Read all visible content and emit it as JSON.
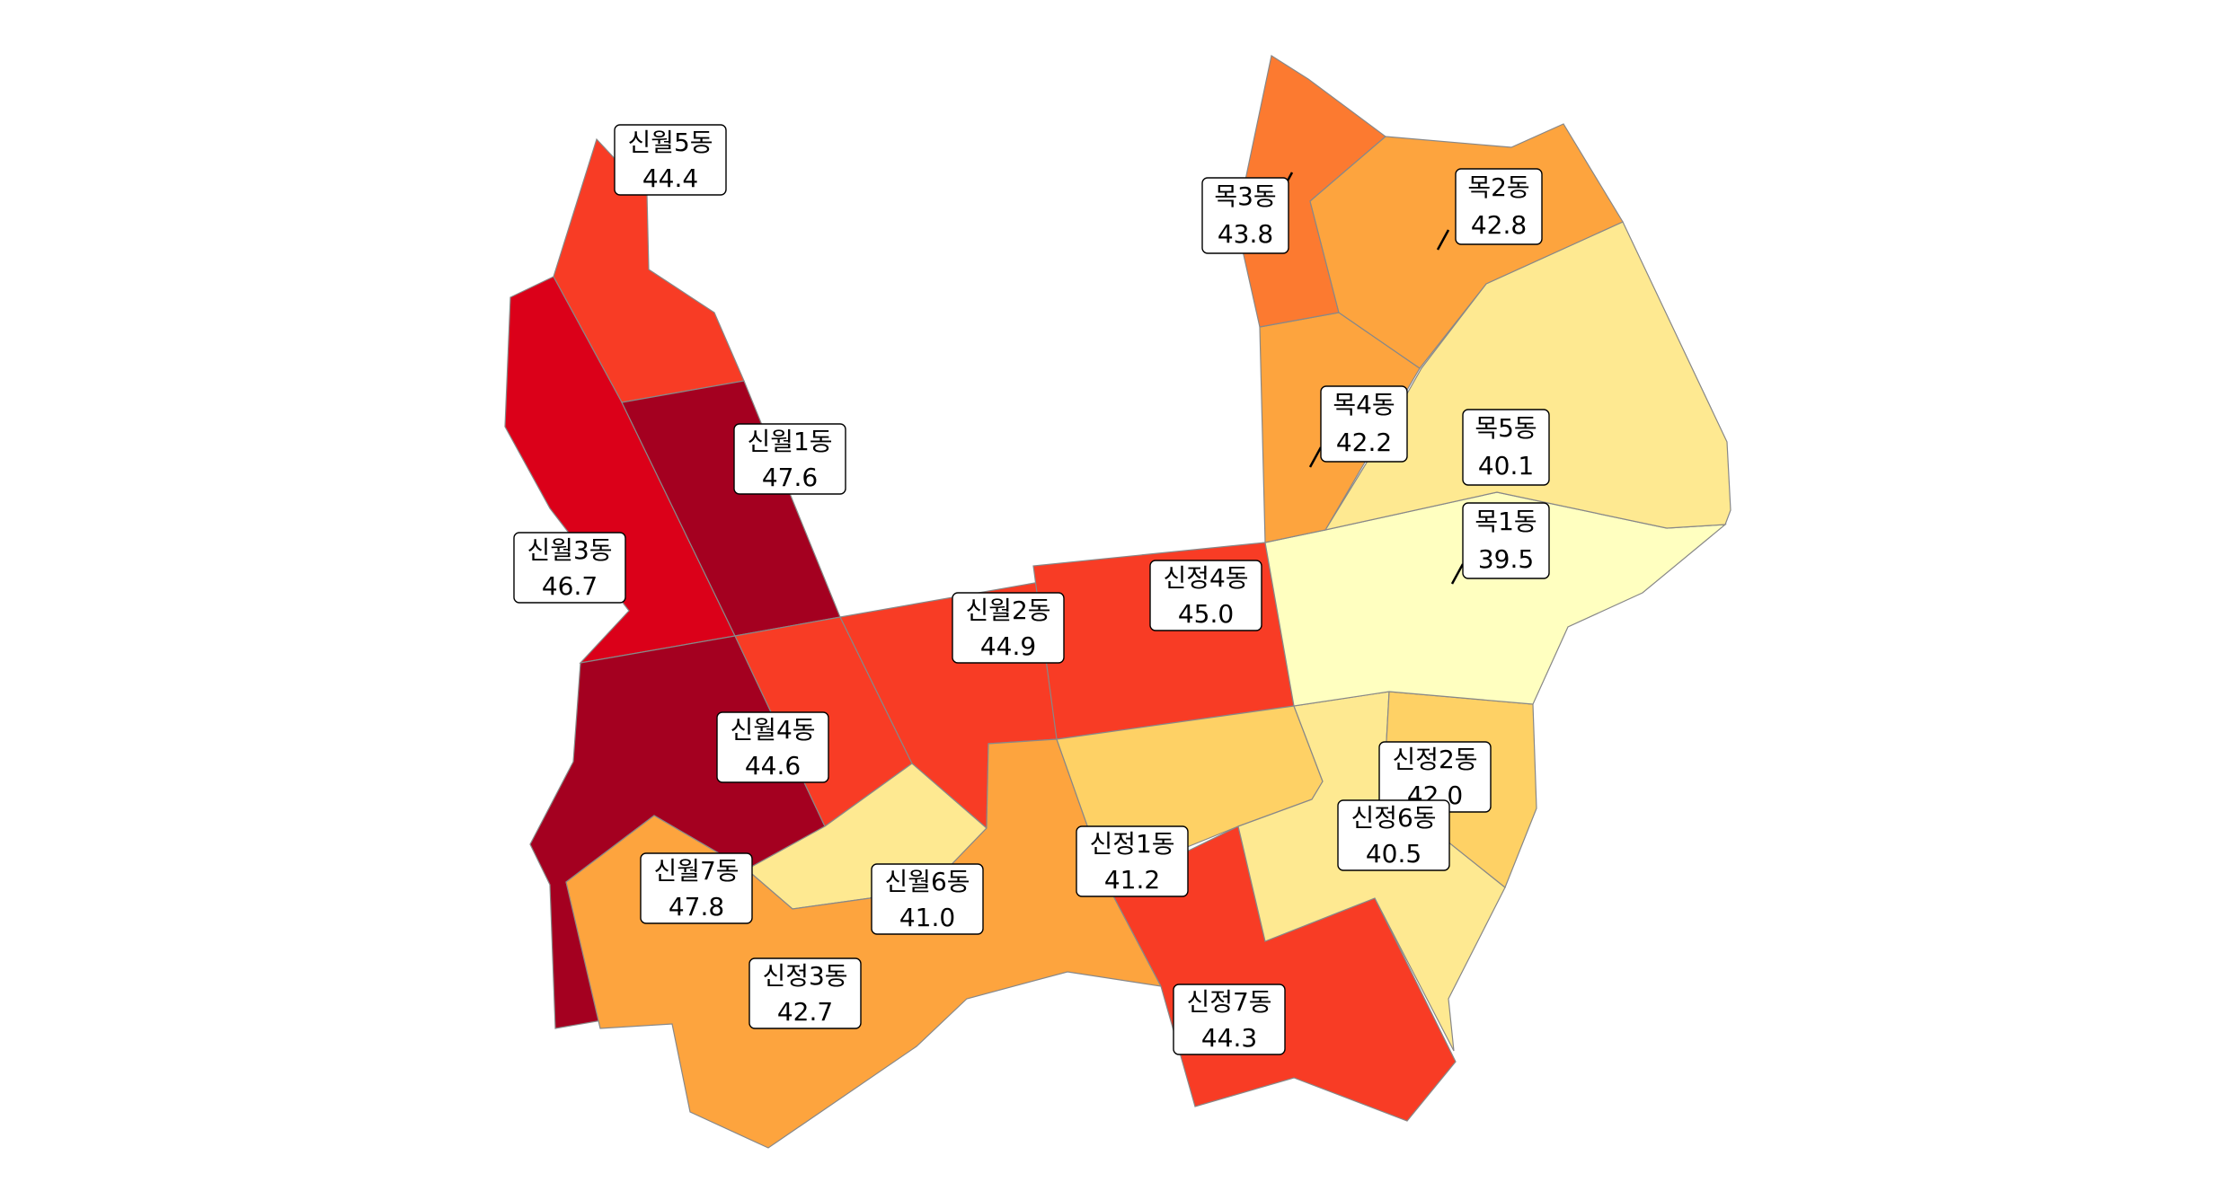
{
  "colors": {
    "39.5": "#ffffc0",
    "40.1": "#fee991",
    "40.5": "#fee991",
    "41.0": "#fee991",
    "41.2": "#fed165",
    "42.0": "#fed165",
    "42.2": "#fda43e",
    "42.7": "#fda43e",
    "42.8": "#fda43e",
    "43.8": "#fc7a30",
    "44.3": "#f83c25",
    "44.4": "#f83c25",
    "44.6": "#f83c25",
    "44.9": "#f83c25",
    "45.0": "#f83c25",
    "46.7": "#db0019",
    "47.6": "#a40020",
    "47.8": "#a40020"
  },
  "regions": [
    {
      "id": "sinwol5",
      "name": "신월5동",
      "value": "44.4"
    },
    {
      "id": "sinwol3",
      "name": "신월3동",
      "value": "46.7"
    },
    {
      "id": "sinwol1",
      "name": "신월1동",
      "value": "47.6"
    },
    {
      "id": "sinwol7",
      "name": "신월7동",
      "value": "47.8"
    },
    {
      "id": "sinwol4",
      "name": "신월4동",
      "value": "44.6"
    },
    {
      "id": "sinwol2",
      "name": "신월2동",
      "value": "44.9"
    },
    {
      "id": "sinwol6",
      "name": "신월6동",
      "value": "41.0"
    },
    {
      "id": "sinjeong3",
      "name": "신정3동",
      "value": "42.7"
    },
    {
      "id": "sinjeong4",
      "name": "신정4동",
      "value": "45.0"
    },
    {
      "id": "sinjeong1",
      "name": "신정1동",
      "value": "41.2"
    },
    {
      "id": "sinjeong7",
      "name": "신정7동",
      "value": "44.3"
    },
    {
      "id": "sinjeong2",
      "name": "신정2동",
      "value": "42.0"
    },
    {
      "id": "sinjeong6",
      "name": "신정6동",
      "value": "40.5"
    },
    {
      "id": "mok1",
      "name": "목1동",
      "value": "39.5"
    },
    {
      "id": "mok5",
      "name": "목5동",
      "value": "40.1"
    },
    {
      "id": "mok4",
      "name": "목4동",
      "value": "42.2"
    },
    {
      "id": "mok3",
      "name": "목3동",
      "value": "43.8"
    },
    {
      "id": "mok2",
      "name": "목2동",
      "value": "42.8"
    }
  ]
}
